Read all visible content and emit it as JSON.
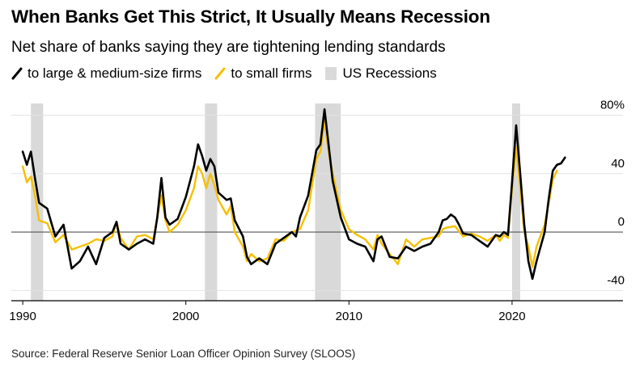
{
  "title": "When Banks Get This Strict, It Usually Means Recession",
  "subtitle": "Net share of banks saying they are tightening lending standards",
  "legend": [
    {
      "label": "to large & medium-size firms",
      "color": "#000000",
      "kind": "line"
    },
    {
      "label": "to small firms",
      "color": "#f5c000",
      "kind": "line"
    },
    {
      "label": "US Recessions",
      "color": "#d9d9d9",
      "kind": "box"
    }
  ],
  "source": "Source: Federal Reserve Senior Loan Officer Opinion Survey (SLOOS)",
  "chart_data": {
    "type": "line",
    "title": "When Banks Get This Strict, It Usually Means Recession",
    "subtitle": "Net share of banks saying they are tightening lending standards",
    "xlabel": "",
    "ylabel": "",
    "xlim": [
      1989.3,
      2026.8
    ],
    "ylim": [
      -47,
      88
    ],
    "x_ticks": [
      1990,
      2000,
      2010,
      2020
    ],
    "y_ticks": [
      80,
      40,
      0,
      -40
    ],
    "y_tick_labels": [
      "80%",
      "40",
      "0",
      "-40"
    ],
    "recessions": [
      [
        1990.5,
        1991.25
      ],
      [
        2001.17,
        2001.92
      ],
      [
        2007.92,
        2009.5
      ],
      [
        2020.0,
        2020.5
      ]
    ],
    "series": [
      {
        "name": "to large & medium-size firms",
        "color": "#000000",
        "points": [
          [
            1990.0,
            55
          ],
          [
            1990.25,
            46
          ],
          [
            1990.5,
            55
          ],
          [
            1990.75,
            37
          ],
          [
            1991.0,
            20
          ],
          [
            1991.5,
            16
          ],
          [
            1992.0,
            -3
          ],
          [
            1992.5,
            5
          ],
          [
            1993.0,
            -25
          ],
          [
            1993.5,
            -20
          ],
          [
            1994.0,
            -10
          ],
          [
            1994.5,
            -22
          ],
          [
            1995.0,
            -4
          ],
          [
            1995.5,
            0
          ],
          [
            1995.75,
            7
          ],
          [
            1996.0,
            -8
          ],
          [
            1996.5,
            -12
          ],
          [
            1997.0,
            -8
          ],
          [
            1997.5,
            -5
          ],
          [
            1998.0,
            -8
          ],
          [
            1998.25,
            10
          ],
          [
            1998.5,
            37
          ],
          [
            1998.75,
            10
          ],
          [
            1999.0,
            5
          ],
          [
            1999.5,
            9
          ],
          [
            2000.0,
            24
          ],
          [
            2000.5,
            45
          ],
          [
            2000.75,
            60
          ],
          [
            2001.0,
            52
          ],
          [
            2001.25,
            42
          ],
          [
            2001.5,
            50
          ],
          [
            2001.75,
            45
          ],
          [
            2002.0,
            27
          ],
          [
            2002.5,
            22
          ],
          [
            2002.75,
            23
          ],
          [
            2003.0,
            8
          ],
          [
            2003.5,
            -3
          ],
          [
            2003.75,
            -17
          ],
          [
            2004.0,
            -22
          ],
          [
            2004.5,
            -18
          ],
          [
            2005.0,
            -22
          ],
          [
            2005.5,
            -8
          ],
          [
            2006.0,
            -4
          ],
          [
            2006.5,
            0
          ],
          [
            2006.75,
            -3
          ],
          [
            2007.0,
            10
          ],
          [
            2007.5,
            25
          ],
          [
            2008.0,
            56
          ],
          [
            2008.25,
            60
          ],
          [
            2008.5,
            84
          ],
          [
            2008.75,
            60
          ],
          [
            2009.0,
            35
          ],
          [
            2009.5,
            10
          ],
          [
            2010.0,
            -5
          ],
          [
            2010.5,
            -8
          ],
          [
            2011.0,
            -10
          ],
          [
            2011.5,
            -20
          ],
          [
            2011.75,
            -5
          ],
          [
            2012.0,
            -3
          ],
          [
            2012.5,
            -17
          ],
          [
            2013.0,
            -18
          ],
          [
            2013.5,
            -10
          ],
          [
            2014.0,
            -13
          ],
          [
            2014.5,
            -10
          ],
          [
            2015.0,
            -8
          ],
          [
            2015.5,
            0
          ],
          [
            2015.75,
            8
          ],
          [
            2016.0,
            9
          ],
          [
            2016.25,
            12
          ],
          [
            2016.5,
            10
          ],
          [
            2016.75,
            5
          ],
          [
            2017.0,
            -1
          ],
          [
            2017.5,
            -2
          ],
          [
            2018.0,
            -6
          ],
          [
            2018.5,
            -10
          ],
          [
            2019.0,
            -2
          ],
          [
            2019.25,
            -3
          ],
          [
            2019.5,
            0
          ],
          [
            2019.75,
            -2
          ],
          [
            2020.0,
            34
          ],
          [
            2020.25,
            73
          ],
          [
            2020.5,
            40
          ],
          [
            2020.75,
            5
          ],
          [
            2021.0,
            -20
          ],
          [
            2021.25,
            -32
          ],
          [
            2021.5,
            -20
          ],
          [
            2022.0,
            0
          ],
          [
            2022.25,
            23
          ],
          [
            2022.5,
            42
          ],
          [
            2022.75,
            46
          ],
          [
            2023.0,
            47
          ],
          [
            2023.25,
            51
          ]
        ]
      },
      {
        "name": "to small firms",
        "color": "#f5c000",
        "points": [
          [
            1990.0,
            45
          ],
          [
            1990.25,
            34
          ],
          [
            1990.5,
            38
          ],
          [
            1990.75,
            25
          ],
          [
            1991.0,
            8
          ],
          [
            1991.5,
            6
          ],
          [
            1992.0,
            -7
          ],
          [
            1992.5,
            -2
          ],
          [
            1993.0,
            -12
          ],
          [
            1993.5,
            -10
          ],
          [
            1994.0,
            -8
          ],
          [
            1994.5,
            -5
          ],
          [
            1995.0,
            -6
          ],
          [
            1995.5,
            -3
          ],
          [
            1995.75,
            7
          ],
          [
            1996.0,
            -4
          ],
          [
            1996.5,
            -12
          ],
          [
            1997.0,
            -3
          ],
          [
            1997.5,
            -2
          ],
          [
            1998.0,
            -5
          ],
          [
            1998.5,
            25
          ],
          [
            1998.75,
            8
          ],
          [
            1999.0,
            0
          ],
          [
            1999.5,
            5
          ],
          [
            2000.0,
            15
          ],
          [
            2000.5,
            30
          ],
          [
            2000.75,
            45
          ],
          [
            2001.0,
            40
          ],
          [
            2001.25,
            30
          ],
          [
            2001.5,
            40
          ],
          [
            2001.75,
            32
          ],
          [
            2002.0,
            22
          ],
          [
            2002.5,
            12
          ],
          [
            2002.75,
            18
          ],
          [
            2003.0,
            0
          ],
          [
            2003.5,
            -10
          ],
          [
            2003.75,
            -20
          ],
          [
            2004.0,
            -15
          ],
          [
            2004.5,
            -20
          ],
          [
            2005.0,
            -18
          ],
          [
            2005.5,
            -5
          ],
          [
            2006.0,
            -6
          ],
          [
            2006.5,
            0
          ],
          [
            2007.0,
            2
          ],
          [
            2007.5,
            15
          ],
          [
            2008.0,
            50
          ],
          [
            2008.25,
            55
          ],
          [
            2008.5,
            76
          ],
          [
            2008.75,
            55
          ],
          [
            2009.0,
            40
          ],
          [
            2009.5,
            15
          ],
          [
            2010.0,
            2
          ],
          [
            2010.5,
            -2
          ],
          [
            2011.0,
            -5
          ],
          [
            2011.5,
            -12
          ],
          [
            2011.75,
            -2
          ],
          [
            2012.0,
            -8
          ],
          [
            2012.5,
            -15
          ],
          [
            2013.0,
            -22
          ],
          [
            2013.5,
            -5
          ],
          [
            2014.0,
            -10
          ],
          [
            2014.5,
            -5
          ],
          [
            2015.0,
            -4
          ],
          [
            2015.5,
            -3
          ],
          [
            2015.75,
            2
          ],
          [
            2016.0,
            3
          ],
          [
            2016.5,
            4
          ],
          [
            2017.0,
            -3
          ],
          [
            2017.5,
            -1
          ],
          [
            2018.0,
            -3
          ],
          [
            2018.5,
            -6
          ],
          [
            2019.0,
            -2
          ],
          [
            2019.25,
            -6
          ],
          [
            2019.5,
            -2
          ],
          [
            2019.75,
            -4
          ],
          [
            2020.0,
            30
          ],
          [
            2020.25,
            58
          ],
          [
            2020.5,
            30
          ],
          [
            2020.75,
            0
          ],
          [
            2021.0,
            -10
          ],
          [
            2021.25,
            -24
          ],
          [
            2021.5,
            -10
          ],
          [
            2022.0,
            5
          ],
          [
            2022.25,
            20
          ],
          [
            2022.5,
            36
          ],
          [
            2022.75,
            42
          ]
        ]
      }
    ]
  }
}
